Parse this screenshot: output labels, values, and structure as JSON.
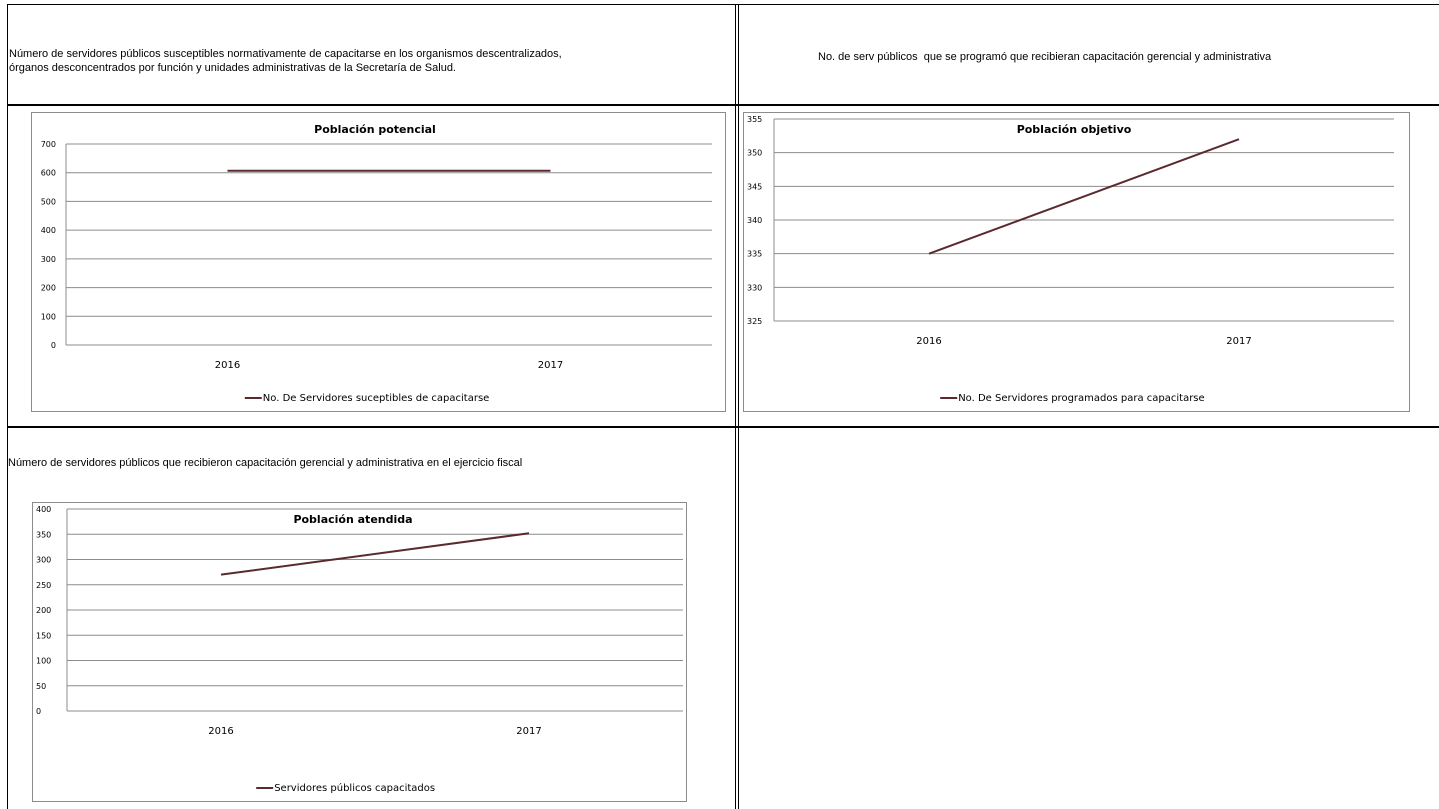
{
  "panels": {
    "top_left": {
      "description_line1": "Número de servidores públicos susceptibles normativamente de capacitarse en los organismos descentralizados,",
      "description_line2": "órganos desconcentrados por función y unidades administrativas de la Secretaría de Salud."
    },
    "top_right": {
      "description": "No. de serv públicos  que se programó que recibieran capacitación gerencial y administrativa"
    },
    "bottom_left": {
      "description": "Número de servidores públicos que recibieron capacitación gerencial y administrativa en el ejercicio fiscal"
    }
  },
  "chart_data": [
    {
      "type": "line",
      "title": "Población potencial",
      "categories": [
        "2016",
        "2017"
      ],
      "series": [
        {
          "name": "No. De Servidores suceptibles de capacitarse",
          "values": [
            607,
            607
          ]
        }
      ],
      "ylim": [
        0,
        700
      ],
      "yticks": [
        "0",
        "100",
        "200",
        "300",
        "400",
        "500",
        "600",
        "700"
      ],
      "grid": true,
      "legend": "bottom",
      "line_color": "#5a2a2e"
    },
    {
      "type": "line",
      "title": "Población objetivo",
      "categories": [
        "2016",
        "2017"
      ],
      "series": [
        {
          "name": "No. De Servidores programados para capacitarse",
          "values": [
            335,
            352
          ]
        }
      ],
      "ylim": [
        325,
        355
      ],
      "yticks": [
        "325",
        "330",
        "335",
        "340",
        "345",
        "350",
        "355"
      ],
      "grid": true,
      "legend": "bottom",
      "line_color": "#5a2a2e"
    },
    {
      "type": "line",
      "title": "Población atendida",
      "categories": [
        "2016",
        "2017"
      ],
      "series": [
        {
          "name": "Servidores públicos capacitados",
          "values": [
            270,
            352
          ]
        }
      ],
      "ylim": [
        0,
        400
      ],
      "yticks": [
        "0",
        "50",
        "100",
        "150",
        "200",
        "250",
        "300",
        "350",
        "400"
      ],
      "grid": true,
      "legend": "bottom",
      "line_color": "#5a2a2e"
    }
  ]
}
